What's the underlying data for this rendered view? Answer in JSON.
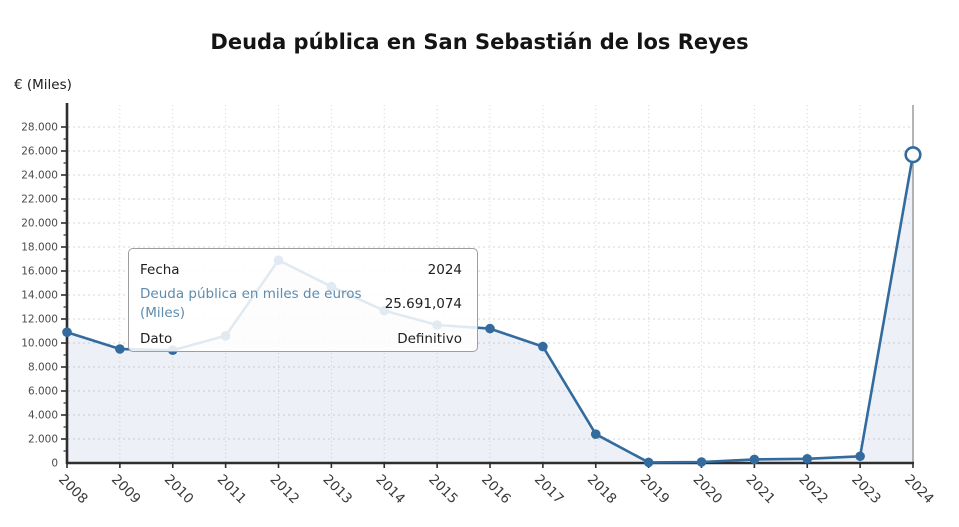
{
  "title": "Deuda pública en San Sebastián de los Reyes",
  "y_axis_unit": "€ (Miles)",
  "tooltip": {
    "rows": [
      {
        "label": "Fecha",
        "value": "2024"
      },
      {
        "label": "Deuda pública en miles de euros (Miles)",
        "value": "25.691,074"
      },
      {
        "label": "Dato",
        "value": "Definitivo"
      }
    ]
  },
  "colors": {
    "line": "#336b9e",
    "marker": "#336b9e",
    "highlight_marker_fill": "#ffffff",
    "area_fill": "rgba(130,158,197,0.14)",
    "grid": "#d5d5d5",
    "axis": "#2e2e2e",
    "crosshair": "#9b9b9b",
    "y_tick_text": "#4c4c4c",
    "x_tick_text": "#3b3b3b",
    "tooltip_series_text": "#5e8cae",
    "tooltip_border": "#9e9e9e"
  },
  "chart_data": {
    "type": "area",
    "title": "Deuda pública en San Sebastián de los Reyes",
    "xlabel": "",
    "ylabel": "€ (Miles)",
    "x": [
      2008,
      2009,
      2010,
      2011,
      2012,
      2013,
      2014,
      2015,
      2016,
      2017,
      2018,
      2019,
      2020,
      2021,
      2022,
      2023,
      2024
    ],
    "series": [
      {
        "name": "Deuda pública en miles de euros (Miles)",
        "values": [
          10900,
          9500,
          9400,
          10600,
          16900,
          14700,
          12700,
          11500,
          11200,
          9700,
          2400,
          50,
          80,
          300,
          350,
          560,
          25691.074
        ]
      }
    ],
    "ylim": [
      0,
      29800
    ],
    "yticks": [
      0,
      2000,
      4000,
      6000,
      8000,
      10000,
      12000,
      14000,
      16000,
      18000,
      20000,
      22000,
      24000,
      26000,
      28000
    ],
    "grid": true,
    "legend": false,
    "highlighted_point": {
      "x": 2024,
      "value": 25691.074,
      "marker": "open-circle",
      "status": "Definitivo"
    }
  }
}
